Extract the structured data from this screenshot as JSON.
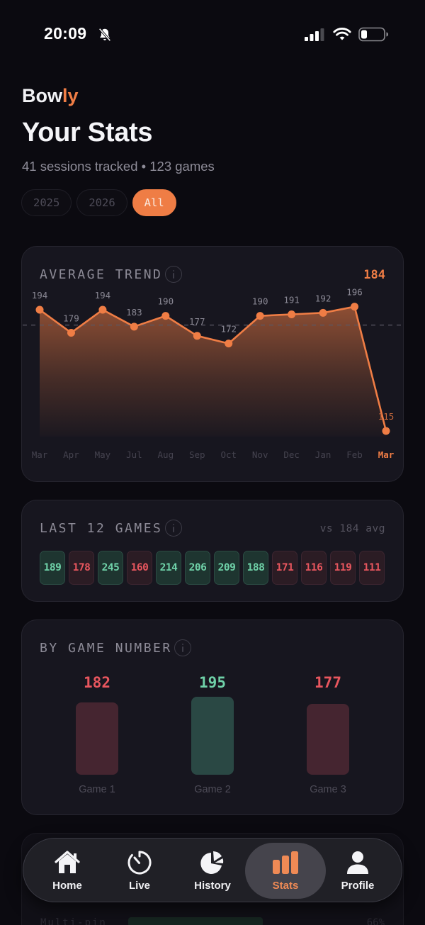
{
  "status_bar": {
    "time": "20:09",
    "icons": [
      "bell-slash-icon",
      "signal-icon",
      "wifi-icon",
      "battery-icon"
    ]
  },
  "header": {
    "brand_prefix": "Bow",
    "brand_suffix": "ly",
    "title": "Your Stats",
    "subtitle": "41 sessions tracked • 123 games"
  },
  "filters": [
    {
      "label": "2025",
      "active": false
    },
    {
      "label": "2026",
      "active": false
    },
    {
      "label": "All",
      "active": true
    }
  ],
  "average_trend": {
    "title": "AVERAGE TREND",
    "current_value": "184",
    "info_icon": "info-icon"
  },
  "last_12_games": {
    "title": "LAST 12 GAMES",
    "comparison": "vs 184 avg",
    "games": [
      {
        "score": "189",
        "status": "up"
      },
      {
        "score": "178",
        "status": "down"
      },
      {
        "score": "245",
        "status": "up"
      },
      {
        "score": "160",
        "status": "down"
      },
      {
        "score": "214",
        "status": "up"
      },
      {
        "score": "206",
        "status": "up"
      },
      {
        "score": "209",
        "status": "up"
      },
      {
        "score": "188",
        "status": "up"
      },
      {
        "score": "171",
        "status": "down"
      },
      {
        "score": "116",
        "status": "down"
      },
      {
        "score": "119",
        "status": "down"
      },
      {
        "score": "111",
        "status": "down"
      }
    ]
  },
  "by_game_number": {
    "title": "BY GAME NUMBER",
    "items": [
      {
        "label": "Game 1",
        "value": "182",
        "status": "down"
      },
      {
        "label": "Game 2",
        "value": "195",
        "status": "up"
      },
      {
        "label": "Game 3",
        "value": "177",
        "status": "down"
      }
    ]
  },
  "hidden_card": {
    "label": "Multi-pin",
    "pct": "66%"
  },
  "colors": {
    "accent": "#ef7d45",
    "good": "#6fd1a8",
    "bad": "#e8565e",
    "background": "#0b0a10",
    "card": "#17161f"
  },
  "bottom_nav": {
    "items": [
      {
        "label": "Home",
        "icon": "home-icon",
        "active": false
      },
      {
        "label": "Live",
        "icon": "timer-icon",
        "active": false
      },
      {
        "label": "History",
        "icon": "pie-chart-icon",
        "active": false
      },
      {
        "label": "Stats",
        "icon": "bar-chart-icon",
        "active": true
      },
      {
        "label": "Profile",
        "icon": "person-icon",
        "active": false
      }
    ]
  },
  "chart_data": [
    {
      "type": "line",
      "title": "AVERAGE TREND",
      "categories": [
        "Mar",
        "Apr",
        "May",
        "Jul",
        "Aug",
        "Sep",
        "Oct",
        "Nov",
        "Dec",
        "Jan",
        "Feb",
        "Mar"
      ],
      "values": [
        194,
        179,
        194,
        183,
        190,
        177,
        172,
        190,
        191,
        192,
        196,
        115
      ],
      "reference_line": {
        "value": 184,
        "style": "dashed",
        "label": "average"
      },
      "highlighted_category": "Mar (last)",
      "current_value": 184,
      "area_fill": true,
      "grid": false,
      "xlabel": "",
      "ylabel": ""
    },
    {
      "type": "bar",
      "title": "BY GAME NUMBER",
      "categories": [
        "Game 1",
        "Game 2",
        "Game 3"
      ],
      "values": [
        182,
        195,
        177
      ],
      "colors": [
        "#e8565e",
        "#6fd1a8",
        "#e8565e"
      ]
    },
    {
      "type": "table",
      "title": "LAST 12 GAMES",
      "reference": "vs 184 avg",
      "values": [
        189,
        178,
        245,
        160,
        214,
        206,
        209,
        188,
        171,
        116,
        119,
        111
      ]
    }
  ]
}
